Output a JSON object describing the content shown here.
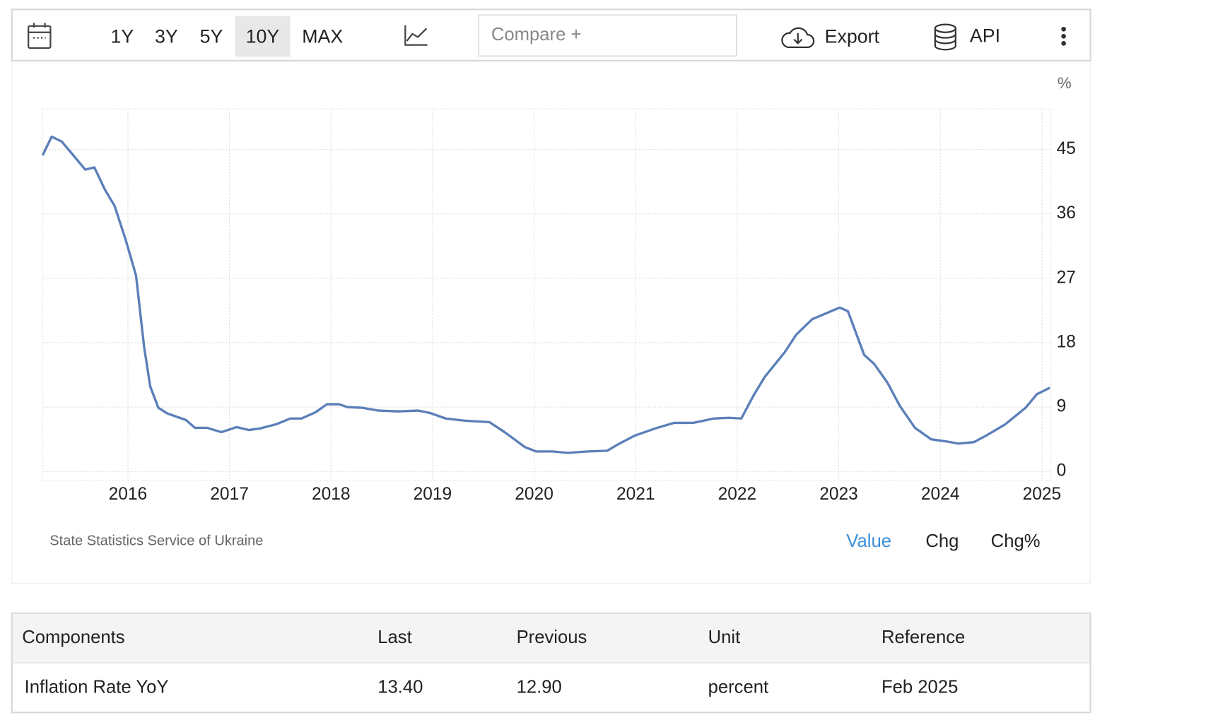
{
  "toolbar": {
    "ranges": [
      "1Y",
      "3Y",
      "5Y",
      "10Y",
      "MAX"
    ],
    "compare": "Compare +",
    "export": "Export",
    "api": "API"
  },
  "chart_data": {
    "type": "line",
    "ylabel": "%",
    "color": "#5b7fb9",
    "grid": true,
    "x": [
      2015.16,
      2015.25,
      2015.35,
      2015.48,
      2015.58,
      2015.67,
      2015.77,
      2015.87,
      2015.98,
      2016.08,
      2016.16,
      2016.22,
      2016.3,
      2016.39,
      2016.57,
      2016.66,
      2016.78,
      2016.92,
      2017.07,
      2017.19,
      2017.3,
      2017.46,
      2017.6,
      2017.71,
      2017.85,
      2017.96,
      2018.08,
      2018.16,
      2018.31,
      2018.47,
      2018.66,
      2018.86,
      2018.97,
      2019.13,
      2019.32,
      2019.56,
      2019.71,
      2019.91,
      2020.02,
      2020.18,
      2020.33,
      2020.53,
      2020.72,
      2020.84,
      2020.99,
      2021.19,
      2021.38,
      2021.57,
      2021.77,
      2021.92,
      2022.04,
      2022.16,
      2022.27,
      2022.47,
      2022.58,
      2022.74,
      2022.94,
      2023.01,
      2023.09,
      2023.25,
      2023.35,
      2023.48,
      2023.6,
      2023.75,
      2023.91,
      2024.06,
      2024.18,
      2024.33,
      2024.45,
      2024.64,
      2024.84,
      2024.95,
      2025.08
    ],
    "values": [
      44.2,
      46.8,
      46.1,
      43.9,
      42.2,
      42.5,
      39.5,
      37.1,
      32.3,
      27.4,
      17.4,
      11.9,
      8.9,
      8.1,
      7.2,
      6.1,
      6.1,
      5.5,
      6.2,
      5.8,
      6.0,
      6.6,
      7.4,
      7.4,
      8.3,
      9.4,
      9.4,
      9.0,
      8.9,
      8.5,
      8.4,
      8.5,
      8.2,
      7.4,
      7.1,
      6.9,
      5.5,
      3.4,
      2.8,
      2.8,
      2.6,
      2.8,
      2.9,
      3.9,
      5.0,
      6.0,
      6.8,
      6.8,
      7.4,
      7.5,
      7.4,
      10.6,
      13.2,
      16.7,
      19.1,
      21.3,
      22.5,
      22.9,
      22.4,
      16.3,
      15.0,
      12.4,
      9.2,
      6.1,
      4.5,
      4.2,
      3.9,
      4.1,
      5.0,
      6.6,
      8.9,
      10.8,
      11.7
    ],
    "xlim": [
      2015.16,
      2025.09
    ],
    "xticks": [
      2016,
      2017,
      2018,
      2019,
      2020,
      2021,
      2022,
      2023,
      2024,
      2025
    ],
    "ylim": [
      -1.3,
      50.7
    ],
    "yticks": [
      0,
      9,
      18,
      27,
      36,
      45
    ]
  },
  "source": "State Statistics Service of Ukraine",
  "tabs": [
    "Value",
    "Chg",
    "Chg%"
  ],
  "table": {
    "columns": [
      "Components",
      "Last",
      "Previous",
      "Unit",
      "Reference"
    ],
    "rows": [
      [
        "Inflation Rate YoY",
        "13.40",
        "12.90",
        "percent",
        "Feb 2025"
      ]
    ]
  }
}
